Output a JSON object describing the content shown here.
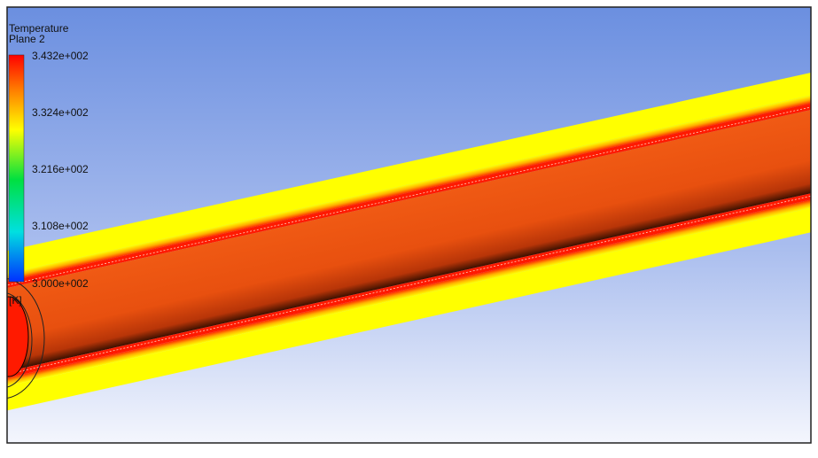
{
  "legend": {
    "title": "Temperature",
    "subtitle": "Plane 2",
    "labels": [
      "3.432e+002",
      "3.324e+002",
      "3.216e+002",
      "3.108e+002",
      "3.000e+002"
    ],
    "unit": "[K]"
  }
}
